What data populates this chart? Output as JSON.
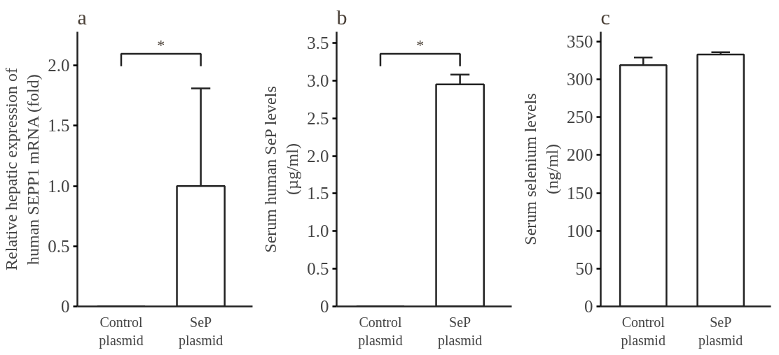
{
  "chart_data": [
    {
      "type": "bar",
      "title": "a",
      "ylabel": "Relative hepatic expression of human SEPP1 mRNA (fold)",
      "categories": [
        "Control plasmid",
        "SeP plasmid"
      ],
      "values": [
        0,
        1.0
      ],
      "errors": [
        null,
        [
          1.0,
          1.81
        ]
      ],
      "color": "#ffffff",
      "ylim": [
        0,
        2.28
      ],
      "yticks": [
        0,
        {
          "value": 0.5,
          "label": "0.5"
        },
        {
          "value": 1,
          "label": "1.0"
        },
        {
          "value": 1.5,
          "label": "1.5"
        },
        {
          "value": 2,
          "label": "2.0"
        }
      ],
      "annotations": [
        "*"
      ],
      "grid": false
    },
    {
      "type": "bar",
      "title": "b",
      "ylabel": "Serum human SeP levels (µg/ml)",
      "categories": [
        "Control plasmid",
        "SeP plasmid"
      ],
      "values": [
        0,
        2.95
      ],
      "errors": [
        null,
        [
          2.95,
          3.08
        ]
      ],
      "color": "#ffffff",
      "ylim": [
        0,
        3.65
      ],
      "yticks": [
        0,
        {
          "value": 0.5,
          "label": "0.5"
        },
        {
          "value": 1,
          "label": "1.0"
        },
        {
          "value": 1.5,
          "label": "1.5"
        },
        {
          "value": 2,
          "label": "2.0"
        },
        {
          "value": 2.5,
          "label": "2.5"
        },
        {
          "value": 3,
          "label": "3.0"
        },
        {
          "value": 3.5,
          "label": "3.5"
        }
      ],
      "annotations": [
        "*"
      ],
      "grid": false
    },
    {
      "type": "bar",
      "title": "c",
      "ylabel": "Serum selenium levels (ng/ml)",
      "categories": [
        "Control plasmid",
        "SeP plasmid"
      ],
      "values": [
        319,
        333
      ],
      "errors": [
        [
          319,
          329
        ],
        [
          333,
          336
        ]
      ],
      "color": "#ffffff",
      "ylim": [
        0,
        363
      ],
      "yticks": [
        0,
        50,
        100,
        150,
        200,
        250,
        300,
        350
      ],
      "grid": false
    }
  ]
}
